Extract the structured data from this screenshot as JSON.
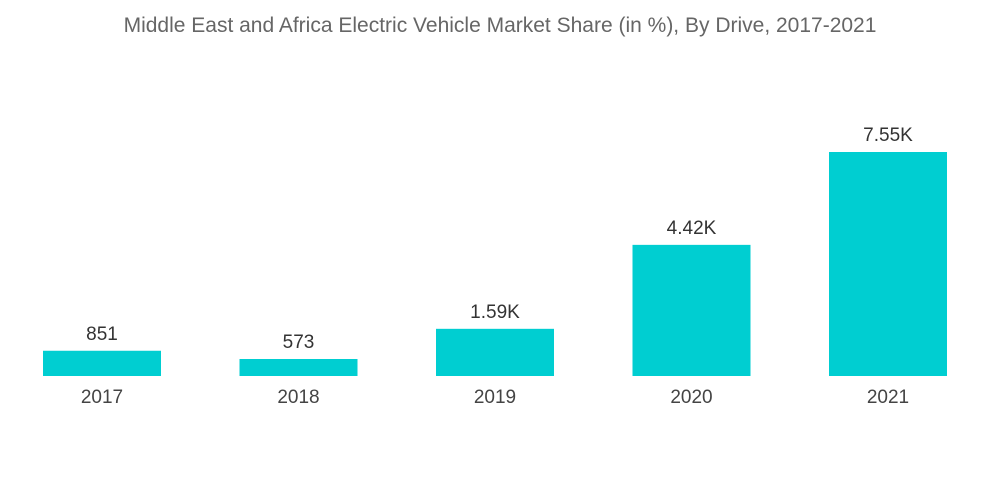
{
  "chart_data": {
    "type": "bar",
    "title": "Middle East and Africa Electric Vehicle Market Share (in %), By Drive, 2017-2021",
    "categories": [
      "2017",
      "2018",
      "2019",
      "2020",
      "2021"
    ],
    "values": [
      851,
      573,
      1590,
      4420,
      7550
    ],
    "value_labels": [
      "851",
      "573",
      "1.59K",
      "4.42K",
      "7.55K"
    ],
    "xlabel": "",
    "ylabel": "",
    "ylim": [
      0,
      8000
    ],
    "grid": false,
    "legend": "none",
    "bar_color": "#00CED1"
  }
}
